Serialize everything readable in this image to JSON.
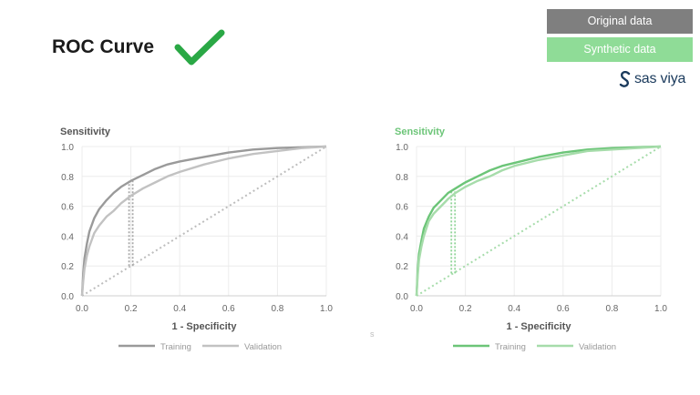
{
  "header": {
    "title": "ROC Curve",
    "check_icon": "checkmark-icon",
    "check_color": "#2aa845"
  },
  "legend": {
    "original": {
      "label": "Original data",
      "color": "#7f7f7f"
    },
    "synthetic": {
      "label": "Synthetic data",
      "color": "#8fdc97"
    }
  },
  "brand": {
    "text": "sas viya",
    "icon": "sas-logo-icon"
  },
  "stray_text": "s",
  "chart_data": [
    {
      "type": "line",
      "title": "",
      "ylabel": "Sensitivity",
      "xlabel": "1 - Specificity",
      "xlim": [
        0,
        1
      ],
      "ylim": [
        0,
        1
      ],
      "xticks": [
        "0.0",
        "0.2",
        "0.4",
        "0.6",
        "0.8",
        "1.0"
      ],
      "yticks": [
        "0.0",
        "0.2",
        "0.4",
        "0.6",
        "0.8",
        "1.0"
      ],
      "grid": true,
      "legend_position": "bottom",
      "accent_color": "#888888",
      "label_color": "#555555",
      "series": [
        {
          "name": "Training",
          "color": "#9a9a9a",
          "x": [
            0,
            0.005,
            0.01,
            0.02,
            0.03,
            0.05,
            0.07,
            0.1,
            0.13,
            0.16,
            0.2,
            0.25,
            0.3,
            0.35,
            0.4,
            0.5,
            0.6,
            0.7,
            0.8,
            0.9,
            1.0
          ],
          "y": [
            0,
            0.15,
            0.25,
            0.35,
            0.43,
            0.52,
            0.58,
            0.64,
            0.69,
            0.73,
            0.77,
            0.81,
            0.85,
            0.88,
            0.9,
            0.93,
            0.96,
            0.98,
            0.99,
            0.995,
            1.0
          ]
        },
        {
          "name": "Validation",
          "color": "#c2c2c2",
          "x": [
            0,
            0.005,
            0.01,
            0.02,
            0.03,
            0.05,
            0.07,
            0.1,
            0.13,
            0.16,
            0.2,
            0.25,
            0.3,
            0.35,
            0.4,
            0.5,
            0.6,
            0.7,
            0.8,
            0.9,
            1.0
          ],
          "y": [
            0,
            0.1,
            0.18,
            0.27,
            0.33,
            0.42,
            0.47,
            0.53,
            0.57,
            0.62,
            0.67,
            0.72,
            0.76,
            0.8,
            0.83,
            0.88,
            0.92,
            0.95,
            0.97,
            0.99,
            1.0
          ]
        }
      ],
      "diagonal": {
        "color": "#bdbdbd",
        "points": [
          [
            0,
            0
          ],
          [
            1,
            1
          ]
        ]
      },
      "cutoff": {
        "x": 0.2,
        "y_low": 0.2,
        "y_high": 0.77,
        "color": "#a8a8a8"
      }
    },
    {
      "type": "line",
      "title": "",
      "ylabel": "Sensitivity",
      "xlabel": "1 - Specificity",
      "xlim": [
        0,
        1
      ],
      "ylim": [
        0,
        1
      ],
      "xticks": [
        "0.0",
        "0.2",
        "0.4",
        "0.6",
        "0.8",
        "1.0"
      ],
      "yticks": [
        "0.0",
        "0.2",
        "0.4",
        "0.6",
        "0.8",
        "1.0"
      ],
      "grid": true,
      "legend_position": "bottom",
      "accent_color": "#6cc578",
      "label_color": "#6cc578",
      "series": [
        {
          "name": "Training",
          "color": "#6cc578",
          "x": [
            0,
            0.005,
            0.01,
            0.02,
            0.03,
            0.05,
            0.07,
            0.1,
            0.13,
            0.16,
            0.2,
            0.25,
            0.3,
            0.35,
            0.4,
            0.5,
            0.6,
            0.7,
            0.8,
            0.9,
            1.0
          ],
          "y": [
            0,
            0.18,
            0.28,
            0.37,
            0.45,
            0.53,
            0.59,
            0.64,
            0.69,
            0.72,
            0.76,
            0.8,
            0.84,
            0.87,
            0.89,
            0.93,
            0.96,
            0.98,
            0.99,
            0.995,
            1.0
          ]
        },
        {
          "name": "Validation",
          "color": "#a6dcaa",
          "x": [
            0,
            0.005,
            0.01,
            0.02,
            0.03,
            0.05,
            0.07,
            0.1,
            0.13,
            0.16,
            0.2,
            0.25,
            0.3,
            0.35,
            0.4,
            0.5,
            0.6,
            0.7,
            0.8,
            0.9,
            1.0
          ],
          "y": [
            0,
            0.14,
            0.24,
            0.33,
            0.4,
            0.5,
            0.55,
            0.6,
            0.65,
            0.69,
            0.73,
            0.77,
            0.8,
            0.84,
            0.87,
            0.91,
            0.94,
            0.97,
            0.98,
            0.99,
            1.0
          ]
        }
      ],
      "diagonal": {
        "color": "#a6dcaa",
        "points": [
          [
            0,
            0
          ],
          [
            1,
            1
          ]
        ]
      },
      "cutoff": {
        "x": 0.15,
        "y_low": 0.15,
        "y_high": 0.71,
        "color": "#8fd497"
      }
    }
  ]
}
